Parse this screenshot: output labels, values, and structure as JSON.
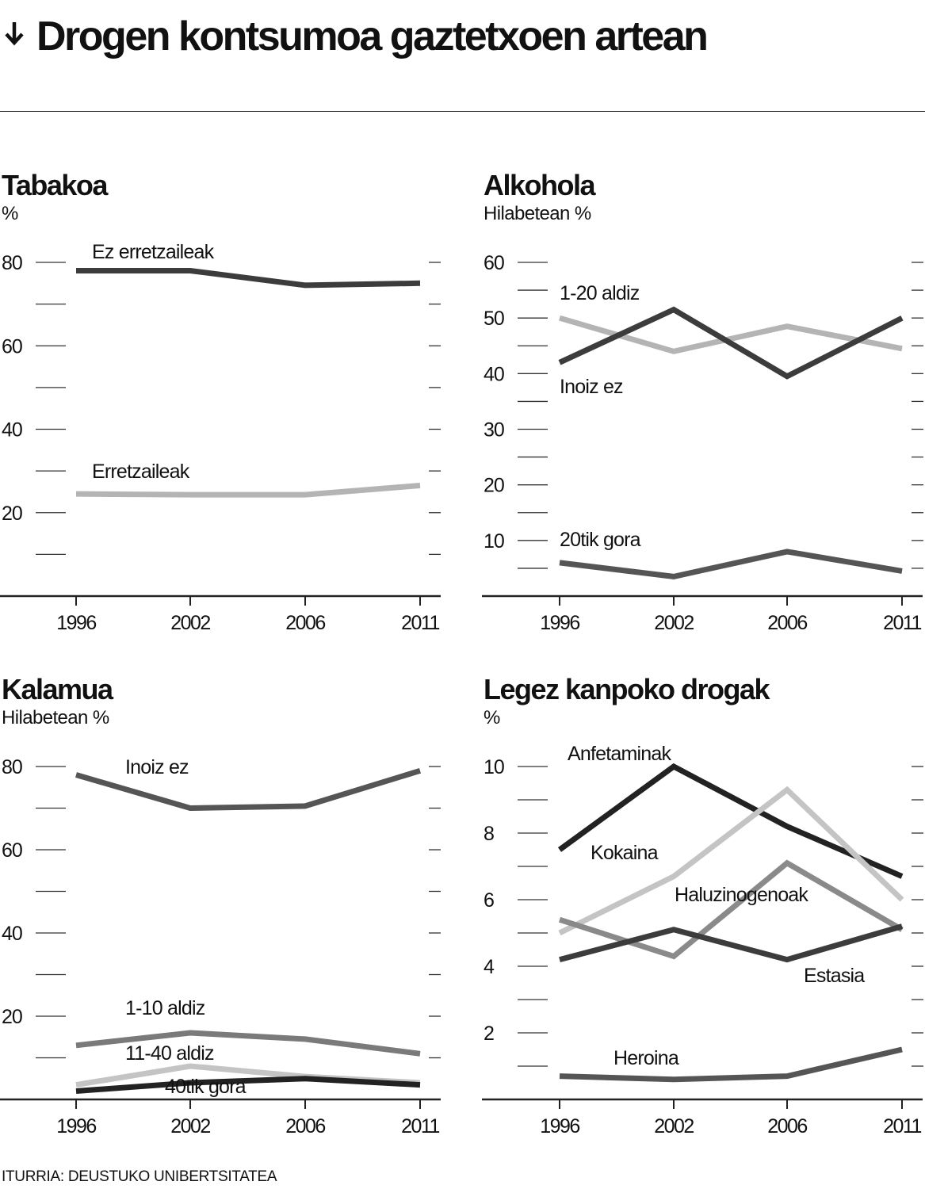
{
  "title": "Drogen kontsumoa gaztetxoen artean",
  "source": "ITURRIA: DEUSTUKO UNIBERTSITATEA",
  "chart_data": [
    {
      "type": "line",
      "title": "Tabakoa",
      "subtitle": "%",
      "x": [
        "1996",
        "2002",
        "2006",
        "2011"
      ],
      "ylim": [
        0,
        80
      ],
      "yticks": [
        "20",
        "40",
        "60",
        "80"
      ],
      "series": [
        {
          "name": "Ez erretzaileak",
          "values": [
            78,
            78,
            74.5,
            75
          ],
          "color": "#3c3c3c"
        },
        {
          "name": "Erretzaileak",
          "values": [
            24.5,
            24.3,
            24.3,
            26.5
          ],
          "color": "#b4b4b4"
        }
      ]
    },
    {
      "type": "line",
      "title": "Alkohola",
      "subtitle": "Hilabetean %",
      "x": [
        "1996",
        "2002",
        "2006",
        "2011"
      ],
      "ylim": [
        0,
        60
      ],
      "yticks": [
        "10",
        "20",
        "30",
        "40",
        "50",
        "60"
      ],
      "series": [
        {
          "name": "1-20 aldiz",
          "values": [
            50,
            44,
            48.5,
            44.5
          ],
          "color": "#b4b4b4"
        },
        {
          "name": "Inoiz ez",
          "values": [
            42,
            51.5,
            39.5,
            50
          ],
          "color": "#3c3c3c"
        },
        {
          "name": "20tik gora",
          "values": [
            6,
            3.5,
            8,
            4.5
          ],
          "color": "#555555"
        }
      ]
    },
    {
      "type": "line",
      "title": "Kalamua",
      "subtitle": "Hilabetean %",
      "x": [
        "1996",
        "2002",
        "2006",
        "2011"
      ],
      "ylim": [
        0,
        80
      ],
      "yticks": [
        "20",
        "40",
        "60",
        "80"
      ],
      "series": [
        {
          "name": "Inoiz ez",
          "values": [
            78,
            70,
            70.5,
            79
          ],
          "color": "#555555"
        },
        {
          "name": "1-10 aldiz",
          "values": [
            13,
            16,
            14.5,
            11
          ],
          "color": "#7a7a7a"
        },
        {
          "name": "11-40 aldiz",
          "values": [
            3.5,
            8,
            5.5,
            4
          ],
          "color": "#c4c4c4"
        },
        {
          "name": "40tik gora",
          "values": [
            2,
            4,
            5,
            3.5
          ],
          "color": "#222222"
        }
      ]
    },
    {
      "type": "line",
      "title": "Legez kanpoko drogak",
      "subtitle": "%",
      "x": [
        "1996",
        "2002",
        "2006",
        "2011"
      ],
      "ylim": [
        0,
        10
      ],
      "yticks": [
        "2",
        "4",
        "6",
        "8",
        "10"
      ],
      "series": [
        {
          "name": "Anfetaminak",
          "values": [
            7.5,
            10,
            8.2,
            6.7
          ],
          "color": "#222222"
        },
        {
          "name": "Kokaina",
          "values": [
            5,
            6.7,
            9.3,
            6
          ],
          "color": "#c4c4c4"
        },
        {
          "name": "Haluzinogenoak",
          "values": [
            5.4,
            4.3,
            7.1,
            5.1
          ],
          "color": "#8a8a8a"
        },
        {
          "name": "Estasia",
          "values": [
            4.2,
            5.1,
            4.2,
            5.2
          ],
          "color": "#3c3c3c"
        },
        {
          "name": "Heroina",
          "values": [
            0.7,
            0.6,
            0.7,
            1.5
          ],
          "color": "#555555"
        }
      ]
    }
  ]
}
